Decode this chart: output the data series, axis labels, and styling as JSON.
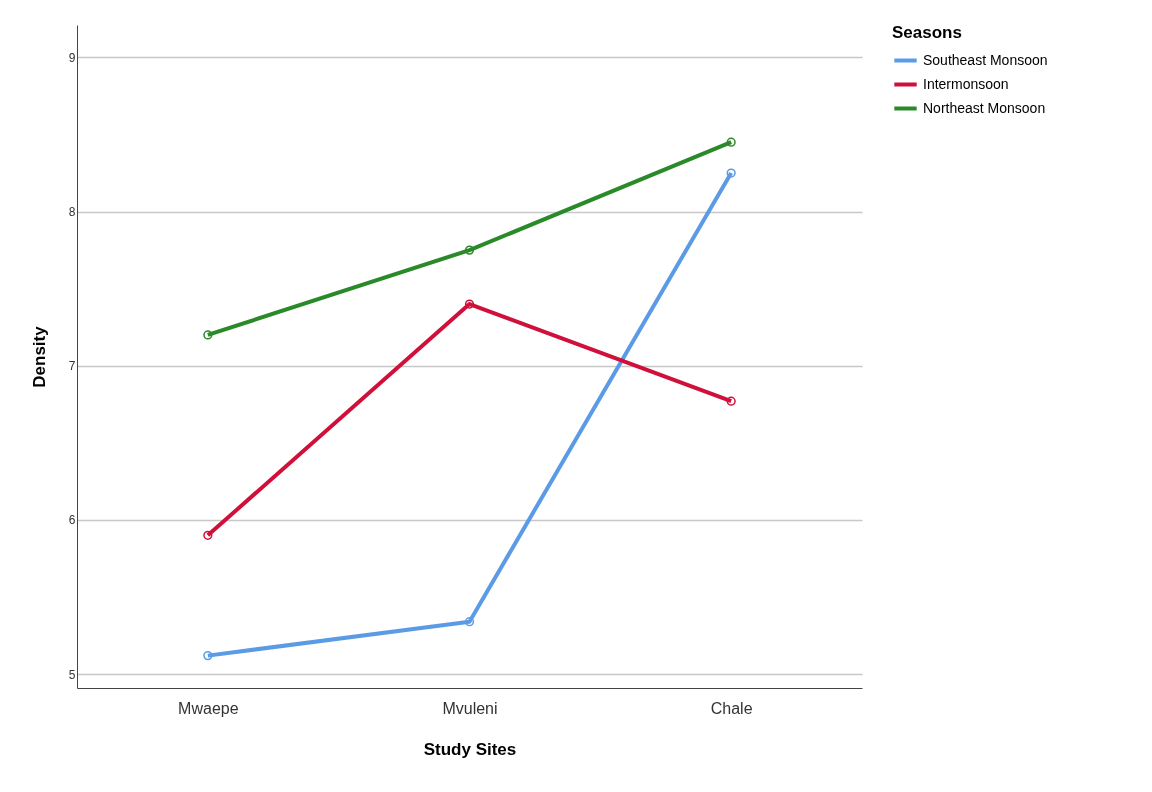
{
  "chart_data": {
    "type": "line",
    "xlabel": "Study Sites",
    "ylabel": "Density",
    "legend_title": "Seasons",
    "categories": [
      "Mwaepe",
      "Mvuleni",
      "Chale"
    ],
    "series": [
      {
        "name": "Southeast Monsoon",
        "color": "#5b9be6",
        "values": [
          5.12,
          5.34,
          8.25
        ]
      },
      {
        "name": "Intermonsoon",
        "color": "#d0103a",
        "values": [
          5.9,
          7.4,
          6.77
        ]
      },
      {
        "name": "Northeast Monsoon",
        "color": "#2a8a2a",
        "values": [
          7.2,
          7.75,
          8.45
        ]
      }
    ],
    "ylim": [
      4.91,
      9.21
    ],
    "yticks": [
      5,
      6,
      7,
      8,
      9
    ],
    "grid": "y",
    "legend": "top right",
    "marker": "circle",
    "line_style": "solid"
  }
}
